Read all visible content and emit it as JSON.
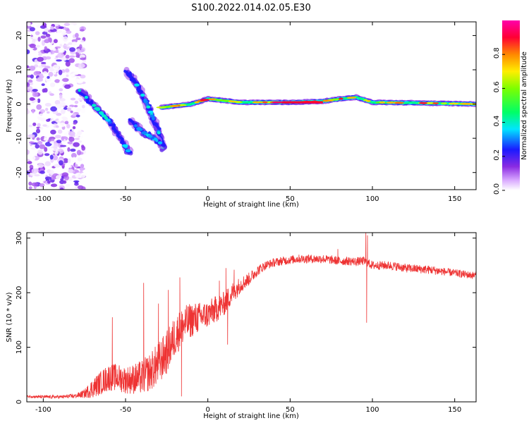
{
  "title": "S100.2022.014.02.05.E30",
  "colors": {
    "snr_line": "#ee3333",
    "axis": "#000000",
    "background": "#ffffff"
  },
  "colorbar": {
    "label": "Normalized spectral amplitude",
    "range": [
      0.0,
      1.0
    ],
    "ticks": [
      "0.0",
      "0.2",
      "0.4",
      "0.6",
      "0.8"
    ],
    "tick_values": [
      0.0,
      0.2,
      0.4,
      0.6,
      0.8
    ],
    "colormap": "gist_rainbow (white → violet → blue → cyan → green → yellow → red → magenta)"
  },
  "chart_data": [
    {
      "type": "heatmap",
      "name": "spectrogram",
      "title": "S100.2022.014.02.05.E30",
      "xlabel": "Height of straight line (km)",
      "ylabel": "Frequency (Hz)",
      "xlim": [
        -110,
        163
      ],
      "ylim": [
        -25,
        24
      ],
      "xticks": [
        -100,
        -50,
        0,
        50,
        100,
        150
      ],
      "yticks": [
        -20,
        -10,
        0,
        10,
        20
      ],
      "grid": false,
      "features": [
        {
          "name": "scattered_noise_region",
          "x_range": [
            -110,
            -75
          ],
          "y_range": [
            -25,
            24
          ],
          "amplitude": [
            0.0,
            0.2
          ]
        },
        {
          "name": "streak_lower",
          "points": [
            [
              -78,
              4
            ],
            [
              -68,
              -1
            ],
            [
              -60,
              -5
            ],
            [
              -53,
              -10
            ],
            [
              -48,
              -14
            ]
          ],
          "amplitude_peak": 0.35
        },
        {
          "name": "streak_upper",
          "points": [
            [
              -50,
              9.5
            ],
            [
              -45,
              7
            ],
            [
              -40,
              3
            ],
            [
              -35,
              -2
            ],
            [
              -30,
              -8
            ],
            [
              -27,
              -13
            ]
          ],
          "amplitude_peak": 0.32
        },
        {
          "name": "streak_middle",
          "points": [
            [
              -47,
              -5
            ],
            [
              -40,
              -8
            ],
            [
              -33,
              -10
            ],
            [
              -27,
              -12
            ]
          ],
          "amplitude_peak": 0.3
        },
        {
          "name": "main_band",
          "points": [
            [
              -28,
              -1
            ],
            [
              -10,
              0
            ],
            [
              0,
              1.5
            ],
            [
              20,
              0.5
            ],
            [
              50,
              0.5
            ],
            [
              70,
              0.8
            ],
            [
              80,
              1.5
            ],
            [
              90,
              2
            ],
            [
              100,
              0.5
            ],
            [
              130,
              0.3
            ],
            [
              163,
              0.0
            ]
          ],
          "amplitude_peak": 0.9
        }
      ]
    },
    {
      "type": "line",
      "name": "snr",
      "xlabel": "Height of straight line (km)",
      "ylabel": "SNR (10 * v/v)",
      "xlim": [
        -110,
        163
      ],
      "ylim": [
        0,
        310
      ],
      "xticks": [
        -100,
        -50,
        0,
        50,
        100,
        150
      ],
      "yticks": [
        0,
        100,
        200,
        300
      ],
      "grid": false,
      "series": [
        {
          "name": "SNR",
          "x": [
            -110,
            -100,
            -90,
            -80,
            -75,
            -70,
            -65,
            -60,
            -55,
            -50,
            -45,
            -40,
            -35,
            -30,
            -25,
            -20,
            -15,
            -10,
            -5,
            0,
            5,
            10,
            15,
            20,
            25,
            30,
            35,
            40,
            45,
            50,
            55,
            60,
            65,
            70,
            75,
            80,
            85,
            90,
            95,
            100,
            105,
            110,
            115,
            120,
            125,
            130,
            135,
            140,
            145,
            150,
            155,
            160,
            163
          ],
          "values": [
            10,
            9,
            9,
            11,
            15,
            25,
            35,
            45,
            45,
            40,
            42,
            45,
            55,
            70,
            90,
            120,
            140,
            150,
            155,
            160,
            170,
            180,
            200,
            215,
            225,
            240,
            250,
            255,
            258,
            260,
            262,
            262,
            262,
            262,
            260,
            258,
            258,
            257,
            258,
            250,
            250,
            250,
            248,
            245,
            244,
            243,
            242,
            240,
            238,
            236,
            234,
            232,
            232
          ],
          "noise": [
            2,
            3,
            3,
            4,
            8,
            18,
            22,
            25,
            25,
            25,
            28,
            32,
            35,
            40,
            40,
            38,
            35,
            32,
            28,
            25,
            25,
            22,
            20,
            15,
            12,
            10,
            8,
            8,
            8,
            8,
            8,
            8,
            8,
            8,
            8,
            8,
            8,
            8,
            8,
            8,
            8,
            8,
            8,
            8,
            8,
            8,
            8,
            8,
            7,
            7,
            7,
            7,
            7
          ],
          "spikes": [
            [
              -58,
              155
            ],
            [
              -39,
              218
            ],
            [
              -30,
              180
            ],
            [
              -24,
              205
            ],
            [
              -17,
              228
            ],
            [
              -16,
              10
            ],
            [
              7,
              222
            ],
            [
              11,
              245
            ],
            [
              12,
              105
            ],
            [
              16,
              242
            ],
            [
              79,
              280
            ],
            [
              96,
              310
            ],
            [
              96.5,
              145
            ],
            [
              97,
              305
            ]
          ]
        }
      ]
    }
  ]
}
